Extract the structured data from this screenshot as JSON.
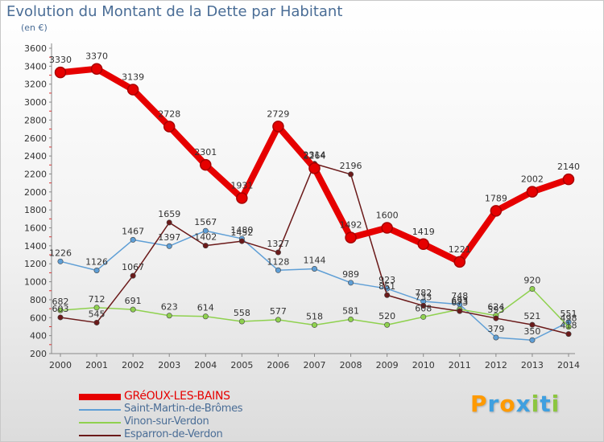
{
  "title": "Evolution du Montant de la Dette par Habitant",
  "subtitle": "(en €)",
  "logo": {
    "text": "Proxiti",
    "letters": [
      {
        "char": "P",
        "color": "#ff9a00"
      },
      {
        "char": "r",
        "color": "#3fa0e0"
      },
      {
        "char": "o",
        "color": "#ff9a00"
      },
      {
        "char": "x",
        "color": "#3fa0e0"
      },
      {
        "char": "i",
        "color": "#8cc63f"
      },
      {
        "char": "t",
        "color": "#3fa0e0"
      },
      {
        "char": "i",
        "color": "#8cc63f"
      }
    ]
  },
  "chart_data": {
    "type": "line",
    "title": "Evolution du Montant de la Dette par Habitant",
    "subtitle": "(en €)",
    "x": [
      2000,
      2001,
      2002,
      2003,
      2004,
      2005,
      2006,
      2007,
      2008,
      2009,
      2010,
      2011,
      2012,
      2013,
      2014
    ],
    "ylim": [
      200,
      3600
    ],
    "yticks": [
      200,
      400,
      600,
      800,
      1000,
      1200,
      1400,
      1600,
      1800,
      2000,
      2200,
      2400,
      2600,
      2800,
      3000,
      3200,
      3400,
      3600
    ],
    "grid": false,
    "legend": "bottom-left",
    "series": [
      {
        "name": "GRéOUX-LES-BAINS",
        "color": "#e60000",
        "bold": true,
        "values": [
          3330,
          3370,
          3139,
          2728,
          2301,
          1931,
          2729,
          2264,
          1492,
          1600,
          1419,
          1221,
          1789,
          2002,
          2140
        ]
      },
      {
        "name": "Saint-Martin-de-Brômes",
        "color": "#5f9fd6",
        "bold": false,
        "values": [
          1226,
          1126,
          1467,
          1397,
          1567,
          1480,
          1128,
          1144,
          989,
          923,
          782,
          748,
          379,
          350,
          551
        ]
      },
      {
        "name": "Vinon-sur-Verdon",
        "color": "#8fd14f",
        "bold": false,
        "values": [
          682,
          712,
          691,
          623,
          614,
          558,
          577,
          518,
          581,
          520,
          608,
          693,
          624,
          920,
          498
        ]
      },
      {
        "name": "Esparron-de-Verdon",
        "color": "#6b1a1a",
        "bold": false,
        "values": [
          603,
          545,
          1067,
          1659,
          1402,
          1452,
          1327,
          2314,
          2196,
          851,
          733,
          673,
          593,
          521,
          418
        ]
      }
    ]
  }
}
